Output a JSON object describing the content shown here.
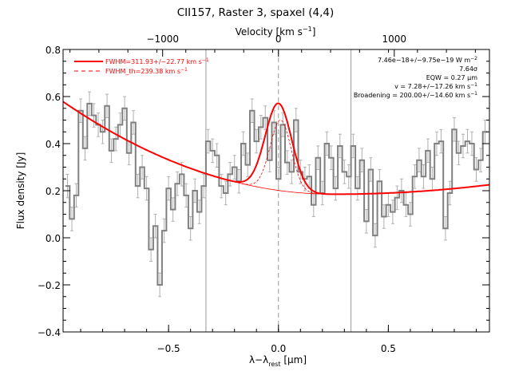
{
  "chart_data": {
    "type": "line",
    "title": "CII157, Raster 3, spaxel (4,4)",
    "xlabel": "λ−λ",
    "xlabel_sub": "rest",
    "xlabel_unit": " [μm]",
    "ylabel": "Flux density [Jy]",
    "top_xlabel": "Velocity [km s",
    "top_xlabel_sup": "−1",
    "top_xlabel_end": "]",
    "xlim": [
      -0.98,
      0.96
    ],
    "ylim": [
      -0.4,
      0.8
    ],
    "x_ticks": [
      -0.5,
      0.0,
      0.5
    ],
    "x_tick_labels": [
      "−0.5",
      "0.0",
      "0.5"
    ],
    "y_ticks": [
      -0.4,
      -0.2,
      0.0,
      0.2,
      0.4,
      0.6,
      0.8
    ],
    "y_tick_labels": [
      "−0.4",
      "−0.2",
      "0.0",
      "0.2",
      "0.4",
      "0.6",
      "0.8"
    ],
    "velocity_ticks": [
      -1000,
      0,
      1000
    ],
    "velocity_tick_labels": [
      "−1000",
      "0",
      "1000"
    ],
    "velocity_scale_um_per_kms": 0.000527,
    "vertical_lines": [
      -0.33,
      0.0,
      0.33
    ],
    "legend": [
      {
        "label": "FWHM=311.93+/−22.77 km s",
        "sup": "−1",
        "style": "solid",
        "color": "#ff0000"
      },
      {
        "label": "FWHM_th=239.38 km s",
        "sup": "−1",
        "style": "dashed",
        "color": "#ff0000"
      }
    ],
    "annotations": [
      {
        "text": "7.46e−18+/−9.75e−19 W m",
        "sup": "−2"
      },
      {
        "text": "7.64σ",
        "sup": ""
      },
      {
        "text": "EQW = 0.27 μm",
        "sup": ""
      },
      {
        "text": "v = 7.28+/−17.26 km s",
        "sup": "−1"
      },
      {
        "text": "Broadening = 200.00+/−14.60 km s",
        "sup": "−1"
      }
    ],
    "series": [
      {
        "kind": "step",
        "color": "#808080",
        "x": [
          -0.96,
          -0.94,
          -0.92,
          -0.9,
          -0.88,
          -0.86,
          -0.84,
          -0.82,
          -0.8,
          -0.78,
          -0.76,
          -0.74,
          -0.72,
          -0.7,
          -0.68,
          -0.66,
          -0.64,
          -0.62,
          -0.6,
          -0.58,
          -0.56,
          -0.54,
          -0.52,
          -0.5,
          -0.48,
          -0.46,
          -0.44,
          -0.42,
          -0.4,
          -0.38,
          -0.36,
          -0.34,
          -0.32,
          -0.3,
          -0.28,
          -0.26,
          -0.24,
          -0.22,
          -0.2,
          -0.18,
          -0.16,
          -0.14,
          -0.12,
          -0.1,
          -0.08,
          -0.06,
          -0.04,
          -0.02,
          0.0,
          0.02,
          0.04,
          0.06,
          0.08,
          0.1,
          0.12,
          0.14,
          0.16,
          0.18,
          0.2,
          0.22,
          0.24,
          0.26,
          0.28,
          0.3,
          0.32,
          0.34,
          0.36,
          0.38,
          0.4,
          0.42,
          0.44,
          0.46,
          0.48,
          0.5,
          0.52,
          0.54,
          0.56,
          0.58,
          0.6,
          0.62,
          0.64,
          0.66,
          0.68,
          0.7,
          0.72,
          0.74,
          0.76,
          0.78,
          0.8,
          0.82,
          0.84,
          0.86,
          0.88,
          0.9,
          0.92,
          0.94
        ],
        "y": [
          0.22,
          0.08,
          0.18,
          0.54,
          0.38,
          0.57,
          0.52,
          0.48,
          0.45,
          0.56,
          0.37,
          0.42,
          0.48,
          0.55,
          0.36,
          0.49,
          0.22,
          0.3,
          0.21,
          -0.05,
          0.05,
          -0.2,
          0.03,
          0.21,
          0.12,
          0.23,
          0.27,
          0.18,
          0.04,
          0.2,
          0.11,
          0.22,
          0.41,
          0.37,
          0.35,
          0.22,
          0.19,
          0.27,
          0.3,
          0.24,
          0.4,
          0.31,
          0.54,
          0.41,
          0.47,
          0.51,
          0.33,
          0.49,
          0.25,
          0.48,
          0.32,
          0.28,
          0.5,
          0.28,
          0.25,
          0.26,
          0.14,
          0.34,
          0.19,
          0.4,
          0.34,
          0.21,
          0.39,
          0.28,
          0.26,
          0.39,
          0.21,
          0.33,
          0.07,
          0.29,
          0.01,
          0.24,
          0.09,
          0.14,
          0.11,
          0.17,
          0.2,
          0.14,
          0.1,
          0.26,
          0.33,
          0.26,
          0.37,
          0.25,
          0.4,
          0.41,
          0.04,
          0.19,
          0.46,
          0.36,
          0.39,
          0.41,
          0.4,
          0.29,
          0.33,
          0.45
        ],
        "error": 0.05
      },
      {
        "kind": "fit_total",
        "color": "#ff0000",
        "style": "solid",
        "amplitude": 0.37,
        "center": 0.0,
        "sigma": 0.06
      },
      {
        "kind": "fit_continuum",
        "color": "#ff0000",
        "style": "solid"
      },
      {
        "kind": "fit_gaussian",
        "color": "#ff0000",
        "style": "dashed"
      }
    ]
  }
}
